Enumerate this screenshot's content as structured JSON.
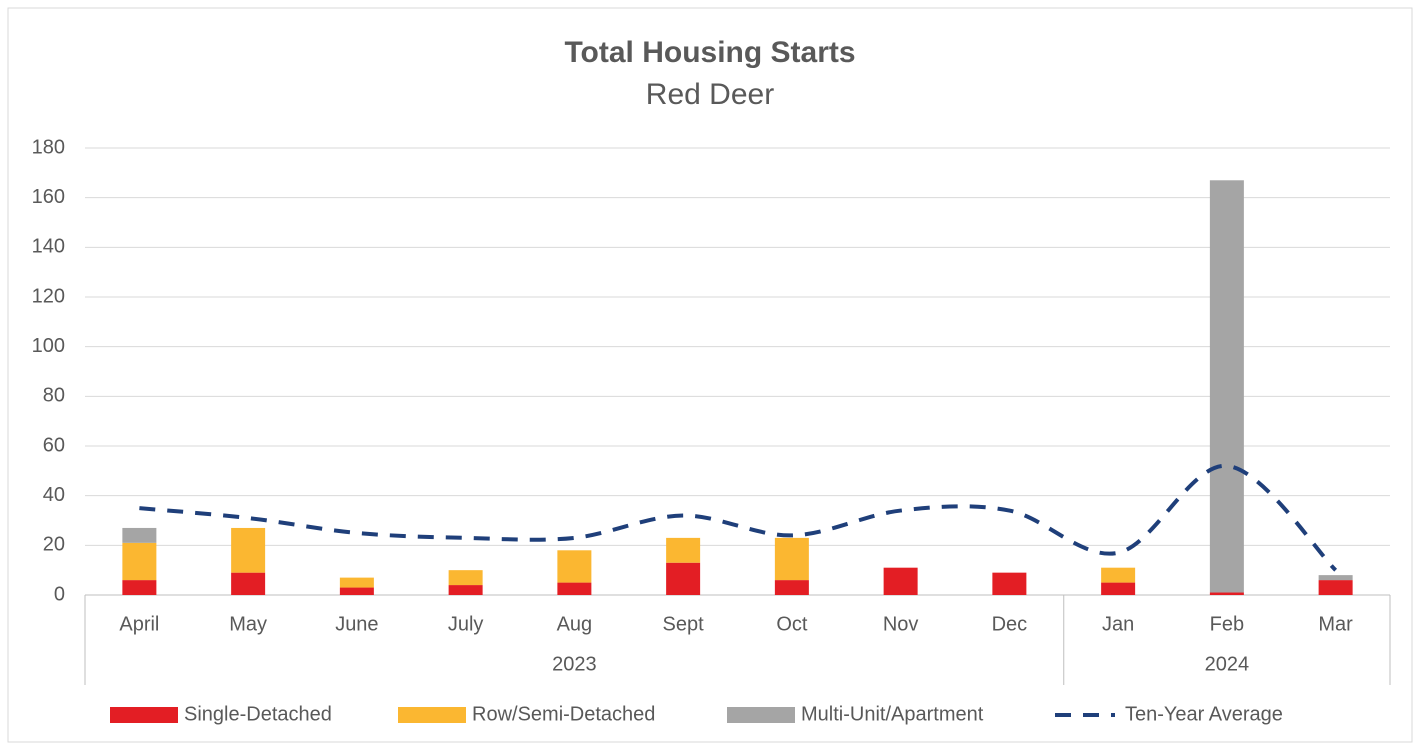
{
  "chart_data": {
    "type": "bar",
    "stacked": true,
    "title": "Total Housing Starts",
    "subtitle": "Red Deer",
    "categories": [
      "April",
      "May",
      "June",
      "July",
      "Aug",
      "Sept",
      "Oct",
      "Nov",
      "Dec",
      "Jan",
      "Feb",
      "Mar"
    ],
    "year_groups": [
      {
        "label": "2023",
        "span": 9
      },
      {
        "label": "2024",
        "span": 3
      }
    ],
    "series": [
      {
        "name": "Single-Detached",
        "color": "#e31e24",
        "values": [
          6,
          9,
          3,
          4,
          5,
          13,
          6,
          11,
          9,
          5,
          1,
          6
        ]
      },
      {
        "name": "Row/Semi-Detached",
        "color": "#fbb731",
        "values": [
          15,
          18,
          4,
          6,
          13,
          10,
          17,
          0,
          0,
          6,
          0,
          0
        ]
      },
      {
        "name": "Multi-Unit/Apartment",
        "color": "#a5a5a5",
        "values": [
          6,
          0,
          0,
          0,
          0,
          0,
          0,
          0,
          0,
          0,
          166,
          2
        ]
      },
      {
        "name": "Ten-Year Average",
        "type": "line",
        "dashed": true,
        "color": "#1f3f7a",
        "values": [
          35,
          31,
          25,
          23,
          23,
          32,
          24,
          34,
          34,
          17,
          52,
          10
        ]
      }
    ],
    "ylim": [
      0,
      180
    ],
    "yticks": [
      0,
      20,
      40,
      60,
      80,
      100,
      120,
      140,
      160,
      180
    ],
    "grid": true,
    "legend": "bottom"
  }
}
